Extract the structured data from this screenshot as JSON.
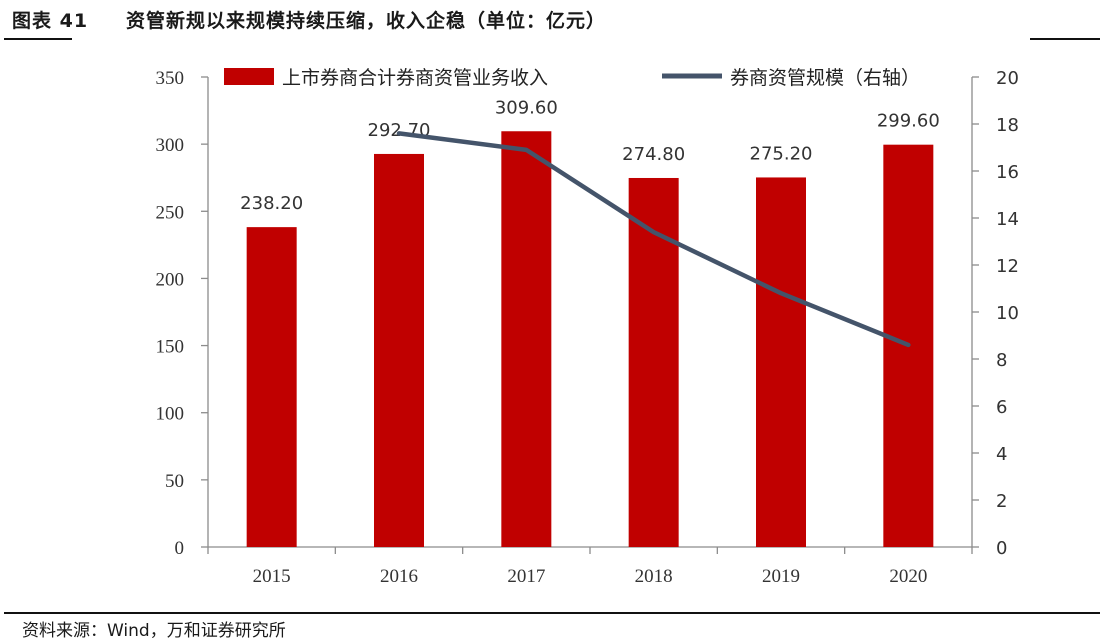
{
  "header": {
    "figure_label": "图表 41",
    "title": "资管新规以来规模持续压缩，收入企稳（单位：亿元）"
  },
  "footer": {
    "source": "资料来源：Wind，万和证券研究所"
  },
  "colors": {
    "bar": "#c00000",
    "line": "#44546a",
    "axis": "#8c8c8c"
  },
  "chart_data": {
    "type": "bar",
    "categories": [
      "2015",
      "2016",
      "2017",
      "2018",
      "2019",
      "2020"
    ],
    "series": [
      {
        "name": "上市券商合计券商资管业务收入",
        "type": "bar",
        "axis": "left",
        "values": [
          238.2,
          292.7,
          309.6,
          274.8,
          275.2,
          299.6
        ],
        "labels": [
          "238.20",
          "292.70",
          "309.60",
          "274.80",
          "275.20",
          "299.60"
        ]
      },
      {
        "name": "券商资管规模（右轴）",
        "type": "line",
        "axis": "right",
        "x": [
          "2016",
          "2017",
          "2018",
          "2019",
          "2020"
        ],
        "values": [
          17.6,
          16.9,
          13.4,
          10.8,
          8.6
        ]
      }
    ],
    "y_left": {
      "ylim": [
        0,
        350
      ],
      "ticks": [
        "0",
        "50",
        "100",
        "150",
        "200",
        "250",
        "300",
        "350"
      ]
    },
    "y_right": {
      "ylim": [
        0,
        20
      ],
      "ticks": [
        "0",
        "2",
        "4",
        "6",
        "8",
        "10",
        "12",
        "14",
        "16",
        "18",
        "20"
      ]
    },
    "legend_position": "top",
    "grid": false
  }
}
